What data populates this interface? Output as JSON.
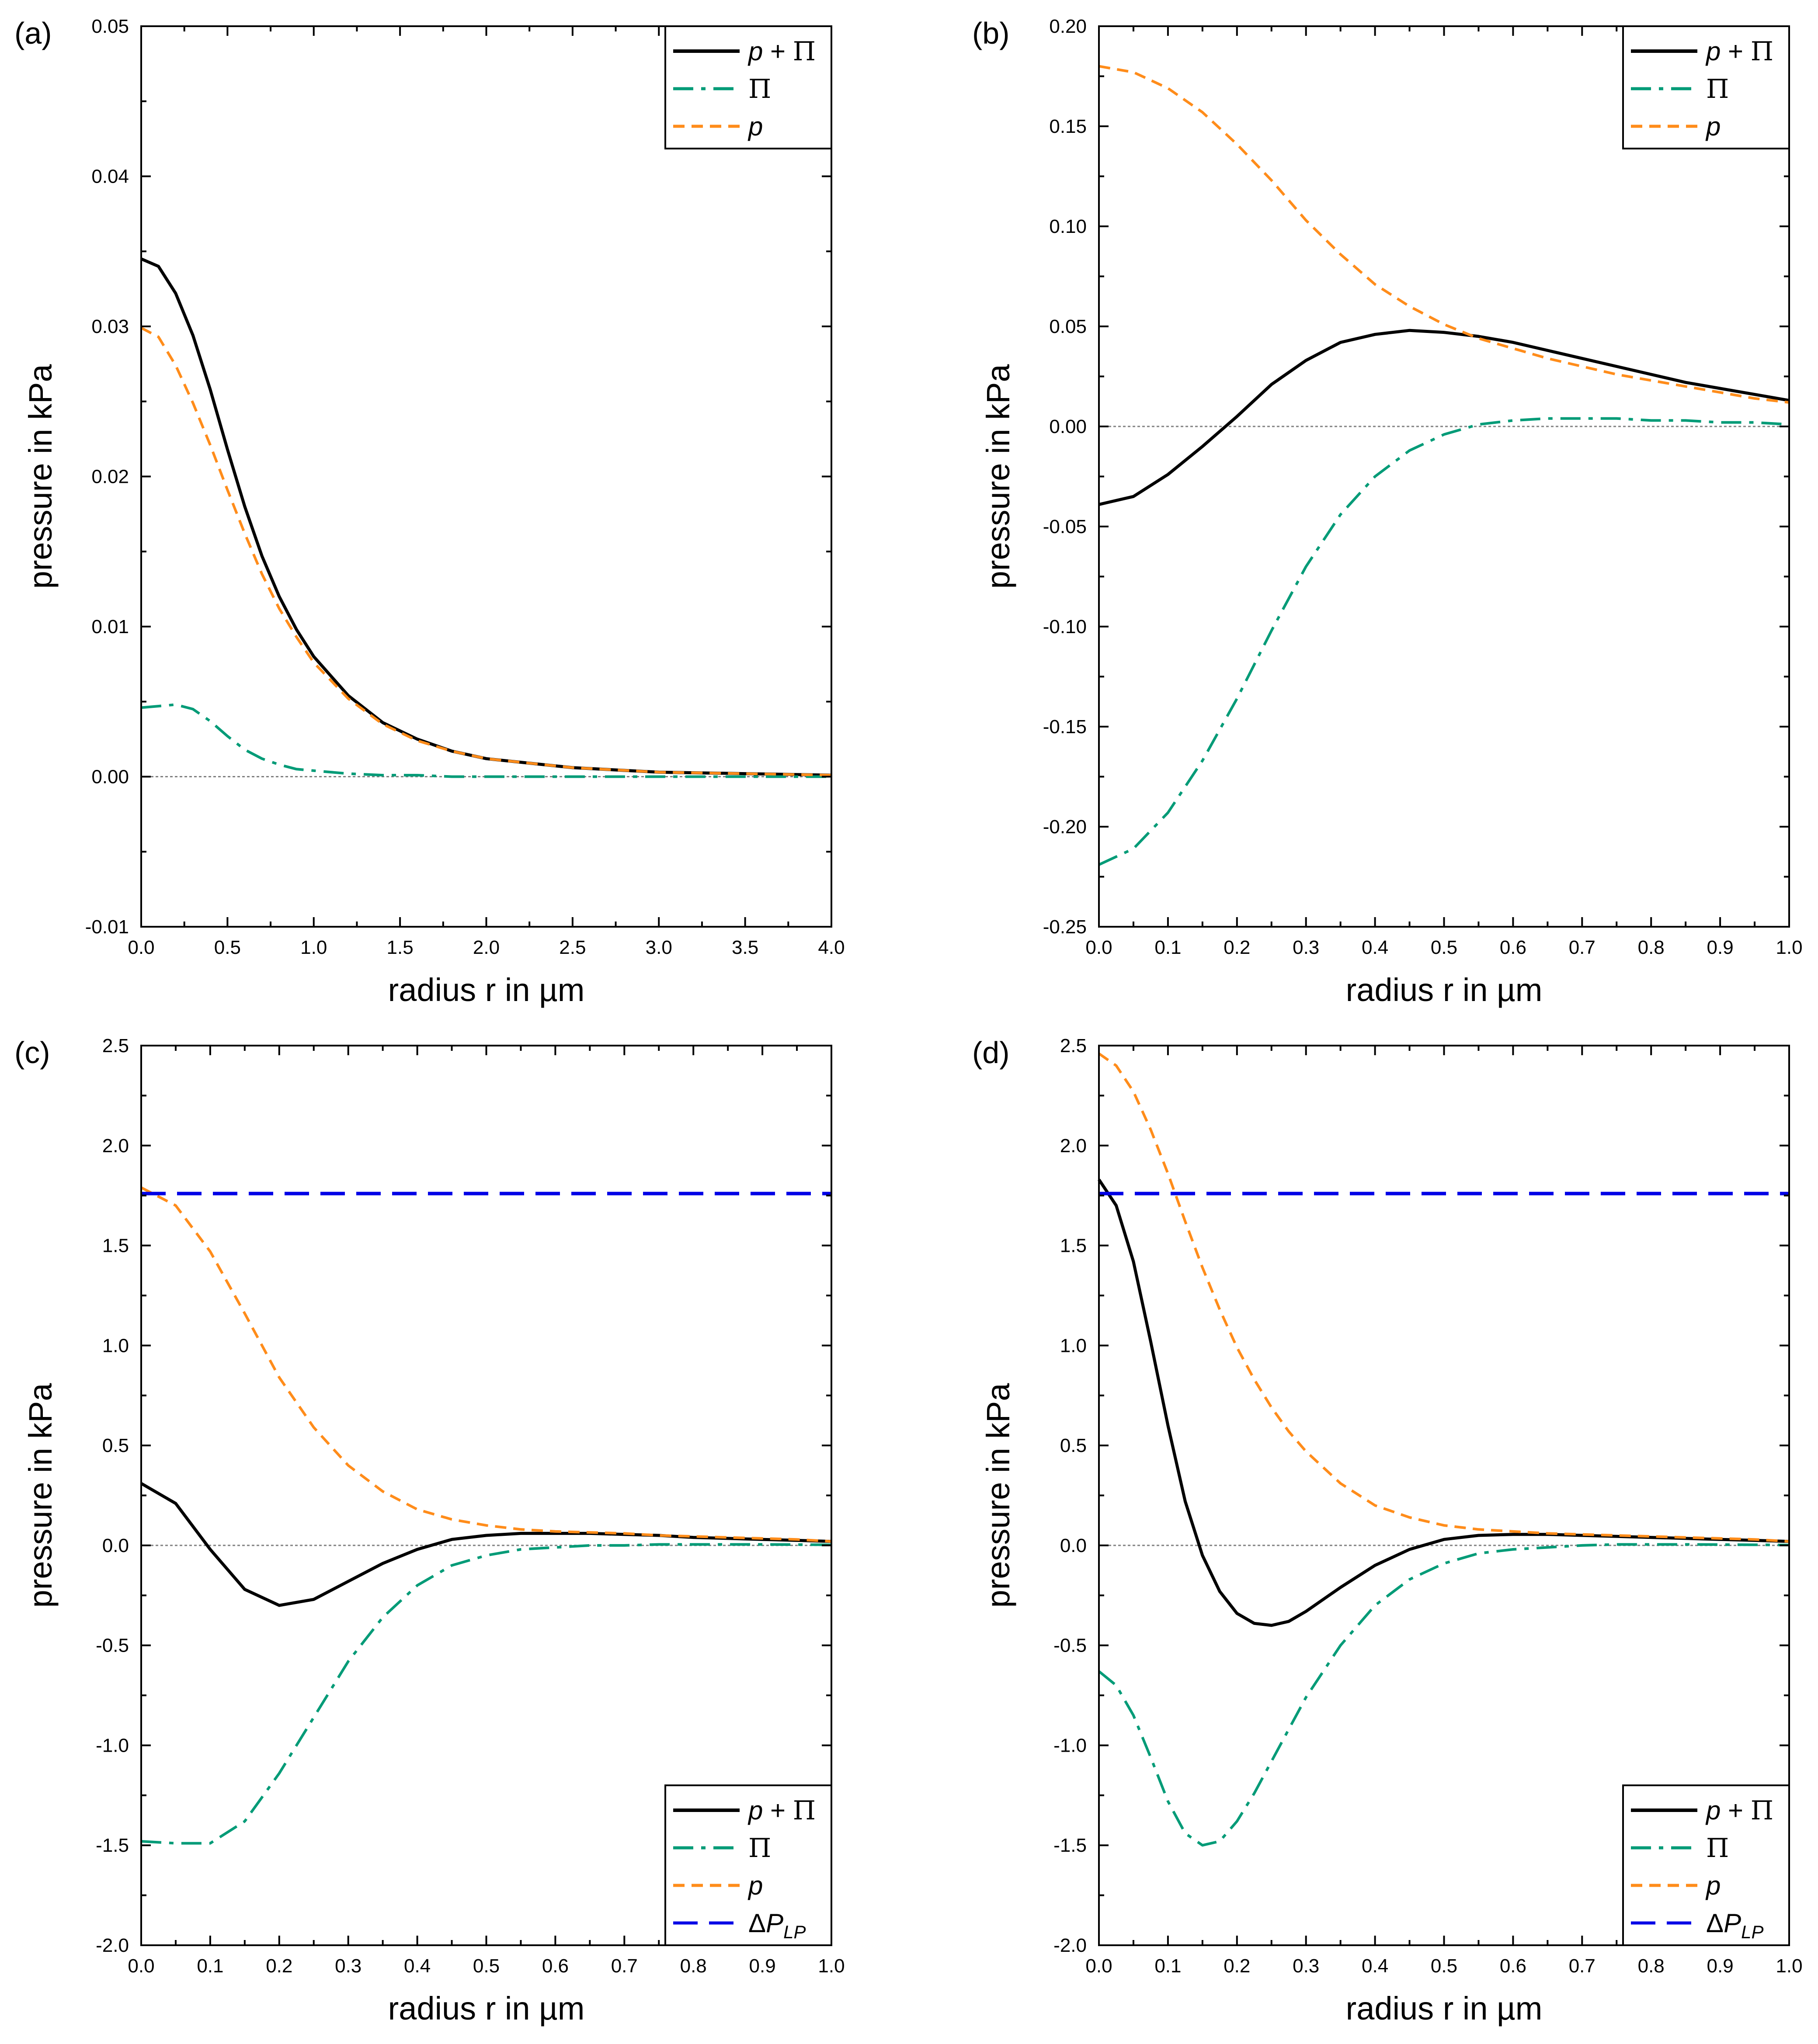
{
  "figure": {
    "panels": [
      "(a)",
      "(b)",
      "(c)",
      "(d)"
    ]
  },
  "colors": {
    "p_plus_pi": "#000000",
    "pi": "#009B77",
    "p": "#FF8C1A",
    "delta_p_lp": "#0000E6",
    "zero_line": "#808080"
  },
  "chart_data": [
    {
      "panel": "(a)",
      "type": "line",
      "xlabel": "radius r in µm",
      "ylabel": "pressure in kPa",
      "xlim": [
        0,
        4
      ],
      "ylim": [
        -0.01,
        0.05
      ],
      "xticks": [
        0,
        0.5,
        1,
        1.5,
        2,
        2.5,
        3,
        3.5,
        4
      ],
      "yticks": [
        -0.01,
        0,
        0.01,
        0.02,
        0.03,
        0.04,
        0.05
      ],
      "xdecimals": 1,
      "ydecimals": 2,
      "zero_line": true,
      "legend_position": "top-right",
      "x": [
        0,
        0.1,
        0.2,
        0.3,
        0.4,
        0.5,
        0.6,
        0.7,
        0.8,
        0.9,
        1.0,
        1.2,
        1.4,
        1.6,
        1.8,
        2.0,
        2.5,
        3.0,
        3.5,
        4.0
      ],
      "series": [
        {
          "key": "p_plus_pi",
          "name": "p + Π",
          "style": "solid",
          "values": [
            0.0345,
            0.034,
            0.0322,
            0.0294,
            0.0258,
            0.0218,
            0.018,
            0.0147,
            0.012,
            0.0098,
            0.008,
            0.0054,
            0.0036,
            0.0025,
            0.0017,
            0.0012,
            0.0006,
            0.0003,
            0.0002,
            0.0001
          ]
        },
        {
          "key": "pi",
          "name": "Π",
          "style": "dashdot",
          "values": [
            0.0046,
            0.0047,
            0.0048,
            0.0045,
            0.0037,
            0.0027,
            0.0018,
            0.0012,
            0.0008,
            0.0005,
            0.0004,
            0.0002,
            0.0001,
            0.0001,
            0.0,
            0.0,
            0.0,
            0.0,
            0.0,
            0.0
          ]
        },
        {
          "key": "p",
          "name": "p",
          "style": "dash",
          "values": [
            0.0299,
            0.0293,
            0.0274,
            0.0249,
            0.0221,
            0.0191,
            0.0162,
            0.0135,
            0.0112,
            0.0093,
            0.0076,
            0.0052,
            0.0035,
            0.0024,
            0.0017,
            0.0012,
            0.0006,
            0.0003,
            0.0002,
            0.0001
          ]
        }
      ]
    },
    {
      "panel": "(b)",
      "type": "line",
      "xlabel": "radius r in µm",
      "ylabel": "pressure in kPa",
      "xlim": [
        0,
        1
      ],
      "ylim": [
        -0.25,
        0.2
      ],
      "xticks": [
        0,
        0.1,
        0.2,
        0.3,
        0.4,
        0.5,
        0.6,
        0.7,
        0.8,
        0.9,
        1.0
      ],
      "yticks": [
        -0.25,
        -0.2,
        -0.15,
        -0.1,
        -0.05,
        0,
        0.05,
        0.1,
        0.15,
        0.2
      ],
      "xdecimals": 1,
      "ydecimals": 2,
      "zero_line": true,
      "legend_position": "top-right",
      "x": [
        0,
        0.05,
        0.1,
        0.15,
        0.2,
        0.25,
        0.3,
        0.35,
        0.4,
        0.45,
        0.5,
        0.55,
        0.6,
        0.65,
        0.7,
        0.75,
        0.8,
        0.85,
        0.9,
        0.95,
        1.0
      ],
      "series": [
        {
          "key": "p_plus_pi",
          "name": "p + Π",
          "style": "solid",
          "values": [
            -0.039,
            -0.035,
            -0.024,
            -0.01,
            0.005,
            0.021,
            0.033,
            0.042,
            0.046,
            0.048,
            0.047,
            0.045,
            0.042,
            0.038,
            0.034,
            0.03,
            0.026,
            0.022,
            0.019,
            0.016,
            0.013
          ]
        },
        {
          "key": "pi",
          "name": "Π",
          "style": "dashdot",
          "values": [
            -0.219,
            -0.211,
            -0.193,
            -0.167,
            -0.136,
            -0.102,
            -0.07,
            -0.044,
            -0.025,
            -0.012,
            -0.004,
            0.001,
            0.003,
            0.004,
            0.004,
            0.004,
            0.003,
            0.003,
            0.002,
            0.002,
            0.001
          ]
        },
        {
          "key": "p",
          "name": "p",
          "style": "dash",
          "values": [
            0.18,
            0.177,
            0.169,
            0.157,
            0.141,
            0.123,
            0.103,
            0.086,
            0.071,
            0.06,
            0.051,
            0.044,
            0.039,
            0.034,
            0.03,
            0.026,
            0.023,
            0.02,
            0.017,
            0.014,
            0.012
          ]
        }
      ]
    },
    {
      "panel": "(c)",
      "type": "line",
      "xlabel": "radius r in µm",
      "ylabel": "pressure in kPa",
      "xlim": [
        0,
        1
      ],
      "ylim": [
        -2.0,
        2.5
      ],
      "xticks": [
        0,
        0.1,
        0.2,
        0.3,
        0.4,
        0.5,
        0.6,
        0.7,
        0.8,
        0.9,
        1.0
      ],
      "yticks": [
        -2.0,
        -1.5,
        -1.0,
        -0.5,
        0,
        0.5,
        1.0,
        1.5,
        2.0,
        2.5
      ],
      "xdecimals": 1,
      "ydecimals": 1,
      "zero_line": true,
      "legend_position": "bottom-right",
      "x": [
        0,
        0.05,
        0.1,
        0.15,
        0.2,
        0.25,
        0.3,
        0.35,
        0.4,
        0.45,
        0.5,
        0.55,
        0.6,
        0.65,
        0.7,
        0.75,
        0.8,
        0.85,
        0.9,
        0.95,
        1.0
      ],
      "series": [
        {
          "key": "p_plus_pi",
          "name": "p + Π",
          "style": "solid",
          "values": [
            0.31,
            0.21,
            -0.02,
            -0.22,
            -0.3,
            -0.27,
            -0.18,
            -0.09,
            -0.02,
            0.03,
            0.05,
            0.06,
            0.06,
            0.06,
            0.055,
            0.05,
            0.04,
            0.035,
            0.03,
            0.025,
            0.02
          ]
        },
        {
          "key": "pi",
          "name": "Π",
          "style": "dashdot",
          "values": [
            -1.48,
            -1.49,
            -1.49,
            -1.38,
            -1.14,
            -0.86,
            -0.58,
            -0.36,
            -0.2,
            -0.1,
            -0.05,
            -0.02,
            -0.01,
            0.0,
            0.0,
            0.005,
            0.005,
            0.005,
            0.005,
            0.004,
            0.003
          ]
        },
        {
          "key": "p",
          "name": "p",
          "style": "dash",
          "values": [
            1.79,
            1.7,
            1.47,
            1.16,
            0.84,
            0.59,
            0.4,
            0.27,
            0.18,
            0.13,
            0.1,
            0.08,
            0.07,
            0.065,
            0.06,
            0.05,
            0.045,
            0.04,
            0.035,
            0.03,
            0.02
          ]
        },
        {
          "key": "delta_p_lp",
          "name": "ΔP_LP",
          "style": "longdash",
          "values": [
            1.76,
            1.76,
            1.76,
            1.76,
            1.76,
            1.76,
            1.76,
            1.76,
            1.76,
            1.76,
            1.76,
            1.76,
            1.76,
            1.76,
            1.76,
            1.76,
            1.76,
            1.76,
            1.76,
            1.76,
            1.76
          ]
        }
      ]
    },
    {
      "panel": "(d)",
      "type": "line",
      "xlabel": "radius r in µm",
      "ylabel": "pressure in kPa",
      "xlim": [
        0,
        1
      ],
      "ylim": [
        -2.0,
        2.5
      ],
      "xticks": [
        0,
        0.1,
        0.2,
        0.3,
        0.4,
        0.5,
        0.6,
        0.7,
        0.8,
        0.9,
        1.0
      ],
      "yticks": [
        -2.0,
        -1.5,
        -1.0,
        -0.5,
        0,
        0.5,
        1.0,
        1.5,
        2.0,
        2.5
      ],
      "xdecimals": 1,
      "ydecimals": 1,
      "zero_line": true,
      "legend_position": "bottom-right",
      "x": [
        0,
        0.025,
        0.05,
        0.075,
        0.1,
        0.125,
        0.15,
        0.175,
        0.2,
        0.225,
        0.25,
        0.275,
        0.3,
        0.35,
        0.4,
        0.45,
        0.5,
        0.55,
        0.6,
        0.65,
        0.7,
        0.75,
        0.8,
        0.85,
        0.9,
        0.95,
        1.0
      ],
      "series": [
        {
          "key": "p_plus_pi",
          "name": "p + Π",
          "style": "solid",
          "values": [
            1.83,
            1.7,
            1.42,
            1.02,
            0.6,
            0.22,
            -0.05,
            -0.23,
            -0.34,
            -0.39,
            -0.4,
            -0.38,
            -0.33,
            -0.21,
            -0.1,
            -0.02,
            0.03,
            0.05,
            0.055,
            0.055,
            0.05,
            0.045,
            0.04,
            0.035,
            0.03,
            0.025,
            0.02
          ]
        },
        {
          "key": "pi",
          "name": "Π",
          "style": "dashdot",
          "values": [
            -0.63,
            -0.7,
            -0.85,
            -1.06,
            -1.28,
            -1.44,
            -1.5,
            -1.48,
            -1.38,
            -1.24,
            -1.08,
            -0.92,
            -0.76,
            -0.5,
            -0.3,
            -0.17,
            -0.09,
            -0.04,
            -0.02,
            -0.01,
            0.0,
            0.005,
            0.005,
            0.005,
            0.004,
            0.003,
            0.002
          ]
        },
        {
          "key": "p",
          "name": "p",
          "style": "dash",
          "values": [
            2.46,
            2.4,
            2.27,
            2.08,
            1.86,
            1.62,
            1.39,
            1.18,
            0.99,
            0.83,
            0.69,
            0.57,
            0.47,
            0.31,
            0.2,
            0.14,
            0.1,
            0.08,
            0.07,
            0.06,
            0.055,
            0.05,
            0.045,
            0.04,
            0.035,
            0.03,
            0.02
          ]
        },
        {
          "key": "delta_p_lp",
          "name": "ΔP_LP",
          "style": "longdash",
          "values": [
            1.76,
            1.76,
            1.76,
            1.76,
            1.76,
            1.76,
            1.76,
            1.76,
            1.76,
            1.76,
            1.76,
            1.76,
            1.76,
            1.76,
            1.76,
            1.76,
            1.76,
            1.76,
            1.76,
            1.76,
            1.76,
            1.76,
            1.76,
            1.76,
            1.76,
            1.76,
            1.76
          ]
        }
      ]
    }
  ]
}
